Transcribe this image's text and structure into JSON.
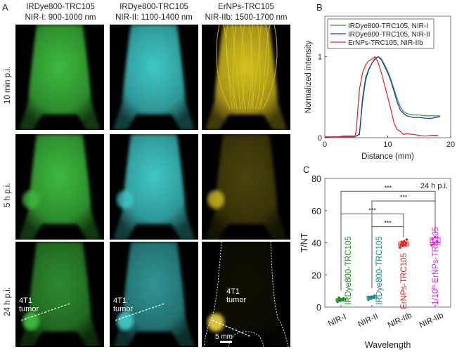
{
  "panel_a": {
    "label": "A",
    "columns": [
      {
        "line1": "IRDye800-TRC105",
        "line2": "NIR-I: 900-1000 nm",
        "color": "#3dbb3d"
      },
      {
        "line1": "IRDye800-TRC105",
        "line2": "NIR-II: 1100-1400 nm",
        "color": "#40c8c8"
      },
      {
        "line1": "ErNPs-TRC105",
        "line2": "NIR-IIb: 1500-1700 nm",
        "color": "#d8c020"
      }
    ],
    "rows": [
      "10 min p.i.",
      "5 h p.i.",
      "24 h p.i."
    ],
    "tumor_label_1": "4T1",
    "tumor_label_2": "tumor",
    "scale_bar": "5 mm"
  },
  "chart_data": [
    {
      "panel": "B",
      "type": "line",
      "xlabel": "Distance (mm)",
      "ylabel": "Normalized intensity",
      "xlim": [
        0,
        20
      ],
      "ylim": [
        0,
        1.5
      ],
      "xticks": [
        0,
        10,
        20
      ],
      "yticks": [
        0,
        1
      ],
      "legend_position": "top",
      "grid": false,
      "series": [
        {
          "name": "IRDye800-TRC105, NIR-I",
          "color": "#2a9a2a",
          "x": [
            0,
            1,
            2,
            3,
            4,
            5,
            5.5,
            6,
            6.5,
            7,
            7.5,
            8,
            8.5,
            9,
            9.5,
            10,
            10.5,
            11,
            11.5,
            12,
            12.5,
            13,
            14,
            15,
            16,
            17,
            18.3
          ],
          "y": [
            0.01,
            0.01,
            0.01,
            0.02,
            0.02,
            0.02,
            0.05,
            0.5,
            0.75,
            0.85,
            0.92,
            0.97,
            1.0,
            0.97,
            0.9,
            0.82,
            0.72,
            0.6,
            0.48,
            0.38,
            0.32,
            0.3,
            0.28,
            0.28,
            0.27,
            0.27,
            0.27
          ]
        },
        {
          "name": "IRDye800-TRC105, NIR-II",
          "color": "#1a2ad0",
          "x": [
            0,
            1,
            2,
            3,
            4,
            5,
            5.5,
            6,
            6.5,
            7,
            7.5,
            8,
            8.5,
            9,
            9.5,
            10,
            10.5,
            11,
            11.5,
            12,
            12.5,
            13,
            14,
            15,
            16,
            17,
            18.3
          ],
          "y": [
            0.0,
            0.01,
            0.01,
            0.02,
            0.02,
            0.02,
            0.04,
            0.45,
            0.72,
            0.84,
            0.92,
            0.98,
            1.0,
            0.96,
            0.88,
            0.8,
            0.7,
            0.57,
            0.44,
            0.34,
            0.3,
            0.27,
            0.25,
            0.25,
            0.24,
            0.24,
            0.26
          ]
        },
        {
          "name": "ErNPs-TRC105, NIR-IIb",
          "color": "#e02020",
          "x": [
            0,
            1,
            2,
            3,
            4,
            4.8,
            5,
            5.5,
            6,
            6.5,
            7,
            7.5,
            8,
            8.5,
            9,
            9.5,
            10,
            10.5,
            11,
            11.5,
            12,
            12.5,
            13,
            14,
            15,
            16,
            17,
            18
          ],
          "y": [
            0.01,
            0.01,
            0.01,
            0.01,
            0.01,
            0.01,
            0.1,
            0.6,
            0.8,
            0.9,
            0.95,
            0.97,
            1.0,
            0.92,
            0.8,
            0.65,
            0.5,
            0.35,
            0.18,
            0.1,
            0.08,
            0.04,
            0.05,
            0.04,
            0.03,
            0.02,
            0.03,
            0.03
          ]
        }
      ]
    },
    {
      "panel": "C",
      "type": "box",
      "xlabel": "Wavelength",
      "ylabel": "T/NT",
      "ylim": [
        0,
        80
      ],
      "yticks": [
        0,
        20,
        40,
        60,
        80
      ],
      "annotation": "24 h p.i.",
      "categories": [
        "NIR-I",
        "NIR-II",
        "NIR-IIb",
        "NIR-IIb"
      ],
      "series": [
        {
          "name": "IRDye800-TRC105",
          "color": "#1f8f1f",
          "median": 4.5,
          "q1": 3.8,
          "q3": 5.2,
          "points": [
            3.2,
            3.9,
            4.3,
            4.6,
            5.0,
            5.4,
            5.8
          ]
        },
        {
          "name": "IRDye800-TRC105",
          "color": "#1a8a8a",
          "median": 6,
          "q1": 5.2,
          "q3": 6.8,
          "points": [
            4.5,
            5.2,
            5.8,
            6.1,
            6.5,
            7.0
          ]
        },
        {
          "name": "ErNPs-TRC105",
          "color": "#e02020",
          "median": 39,
          "q1": 38,
          "q3": 40.5,
          "points": [
            37,
            38,
            38.5,
            39,
            39.5,
            40,
            40.5,
            41,
            42
          ]
        },
        {
          "name_prefix": "1/10",
          "name_sup": "th",
          "name": "ErNPs-TRC105",
          "color": "#e020e0",
          "median": 40,
          "q1": 39,
          "q3": 43,
          "points": [
            38.5,
            40,
            41,
            42,
            43.5
          ]
        }
      ],
      "significance": [
        {
          "from": 1,
          "to": 4,
          "label": "***",
          "level": 72
        },
        {
          "from": 2,
          "to": 4,
          "label": "***",
          "level": 66
        },
        {
          "from": 1,
          "to": 3,
          "label": "***",
          "level": 58
        },
        {
          "from": 2,
          "to": 3,
          "label": "***",
          "level": 50
        }
      ]
    }
  ],
  "panel_b_label": "B",
  "panel_c_label": "C"
}
